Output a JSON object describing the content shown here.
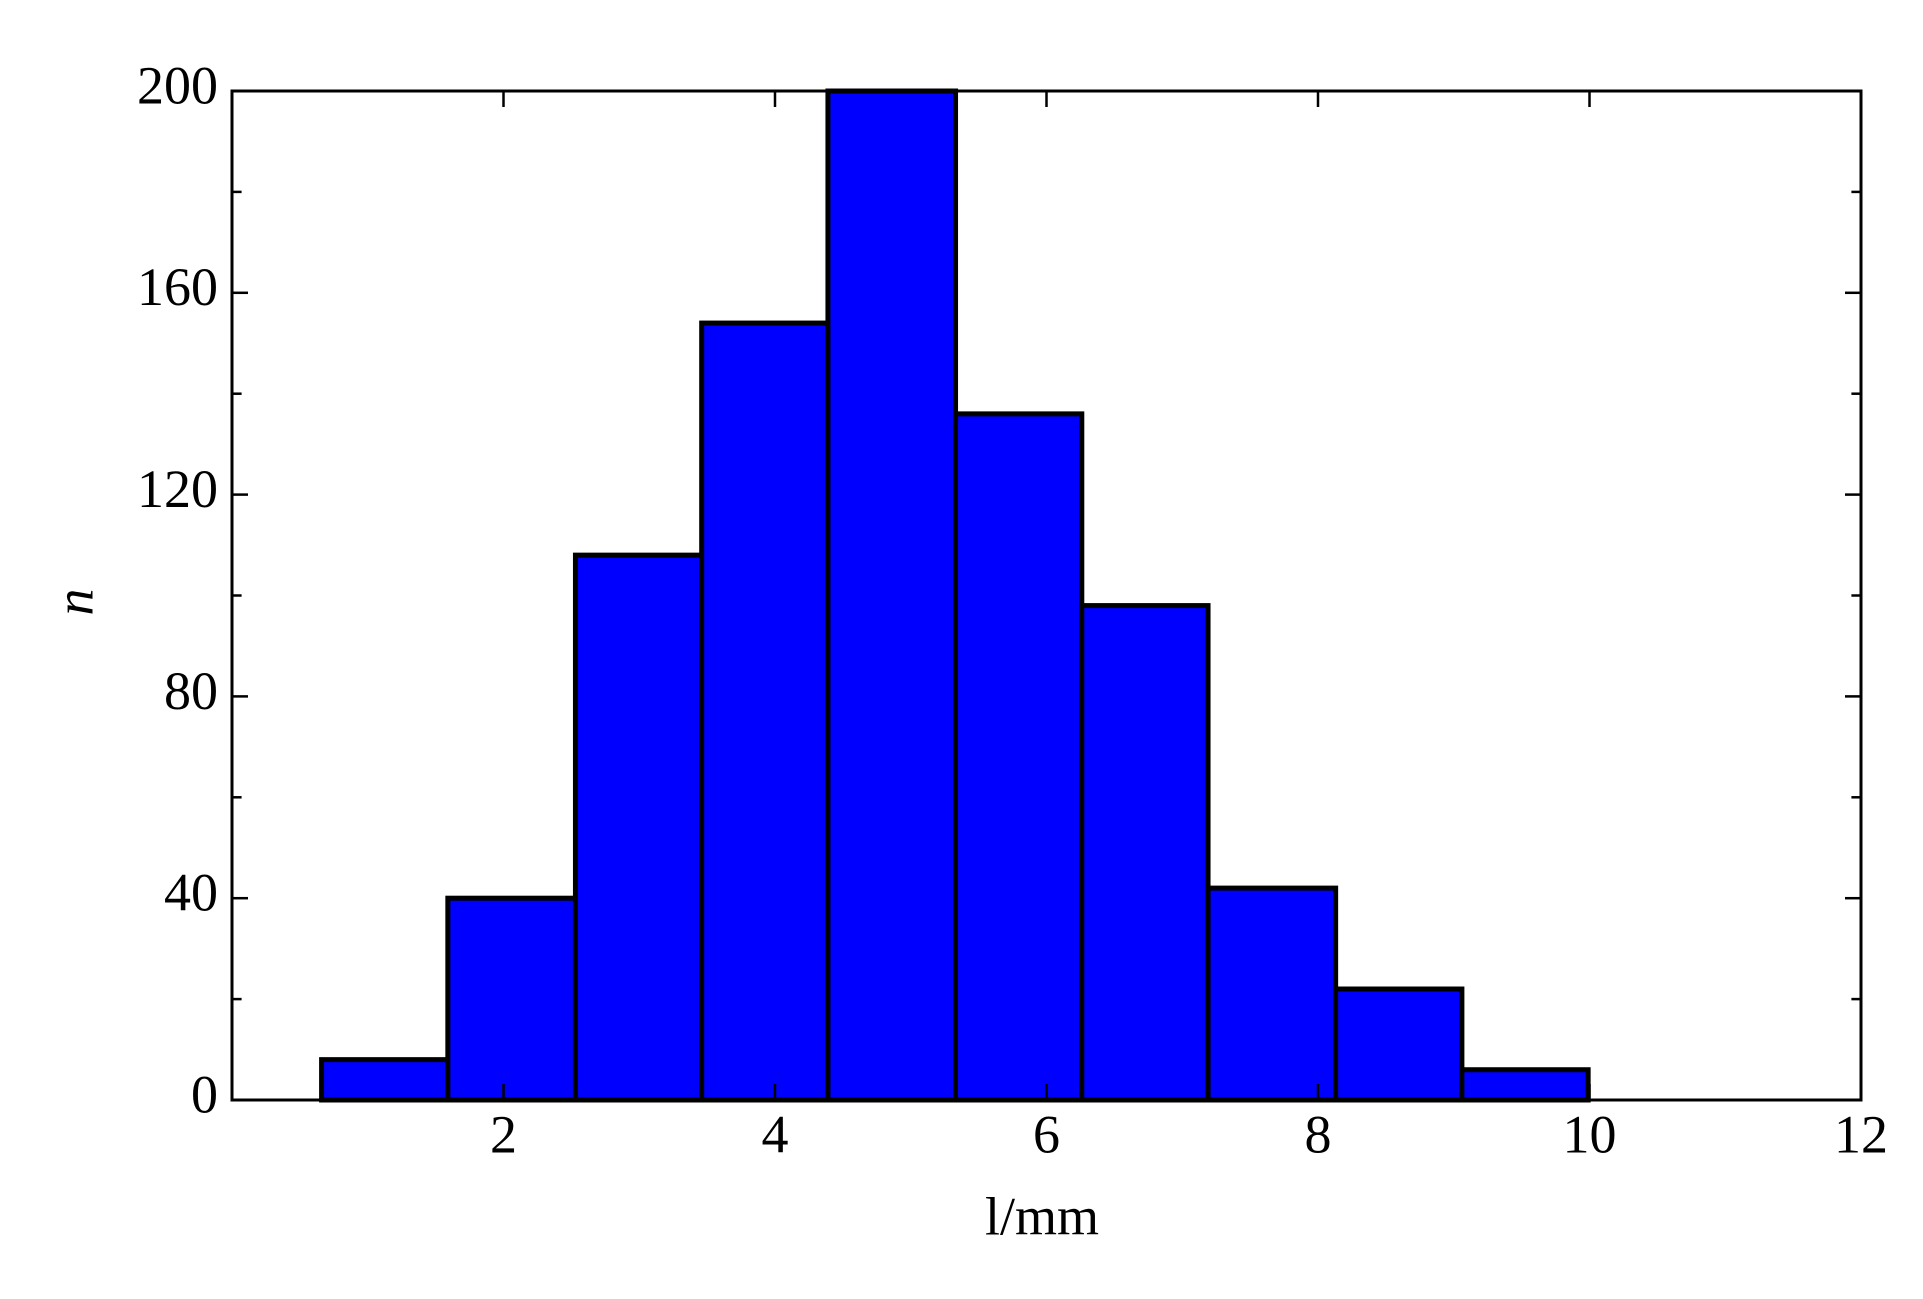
{
  "chart_data": {
    "type": "histogram",
    "xlabel": "l/mm",
    "ylabel": "n",
    "bins": [
      0.66,
      1.59,
      2.53,
      3.46,
      4.39,
      5.33,
      6.26,
      7.19,
      8.13,
      9.06,
      9.99
    ],
    "values": [
      8,
      40,
      108,
      154,
      200,
      136,
      98,
      42,
      22,
      6
    ],
    "color": "#0000ff",
    "edgecolor": "#000000",
    "xlim": [
      0,
      12
    ],
    "xticks": [
      2,
      4,
      6,
      8,
      10,
      12
    ],
    "ylim": [
      0,
      200
    ],
    "yticks": [
      0,
      40,
      80,
      120,
      160,
      200
    ],
    "yminorticks": [
      20,
      60,
      100,
      140,
      180
    ]
  }
}
